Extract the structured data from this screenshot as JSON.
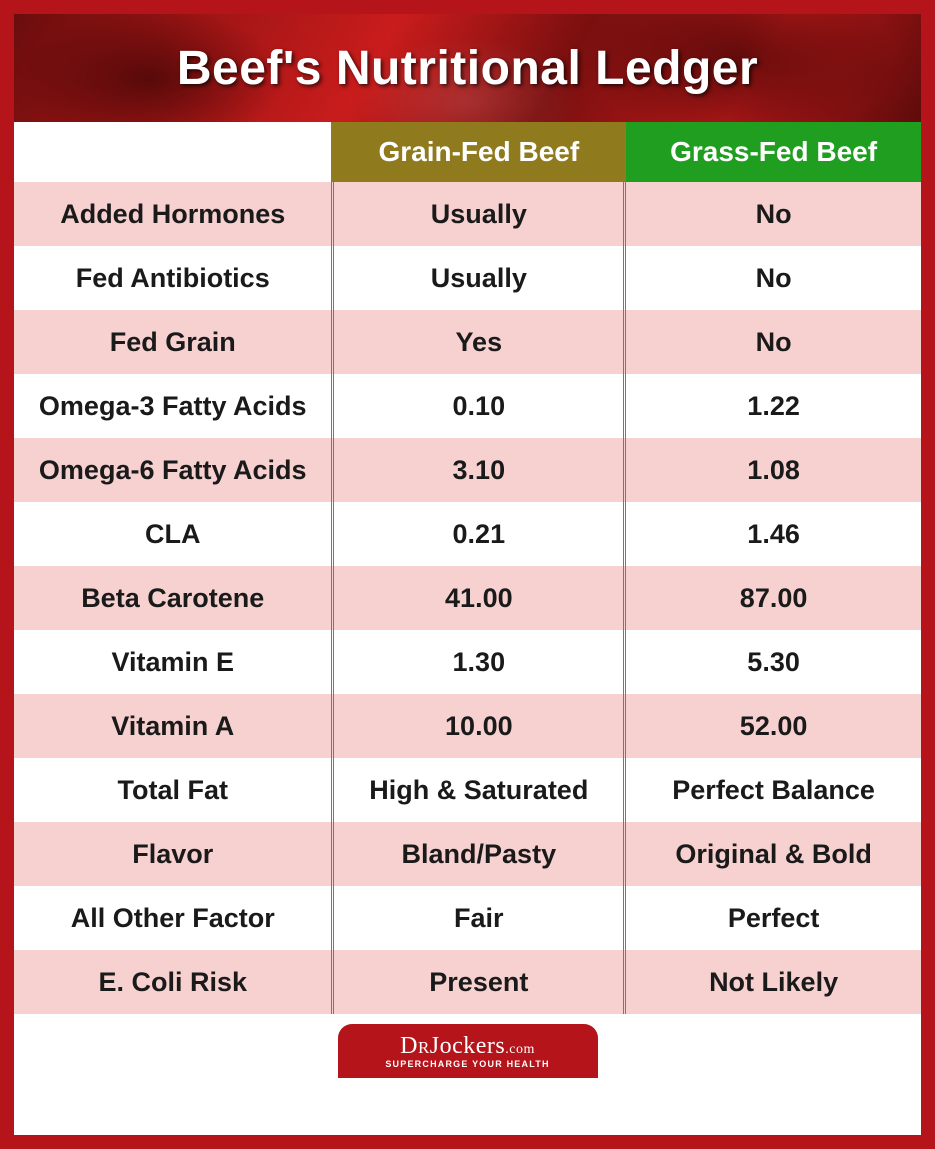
{
  "title": "Beef's Nutritional Ledger",
  "title_fontsize": 48,
  "title_color": "#ffffff",
  "banner_gradient_colors": [
    "#6a0d0d",
    "#a01515",
    "#c91c1c",
    "#7a0f0f",
    "#b51818",
    "#5e0b0b"
  ],
  "frame_color": "#b4141a",
  "table": {
    "type": "table",
    "header_row_height": 60,
    "data_row_height": 64,
    "label_fontsize": 27,
    "label_fontweight": 600,
    "value_fontsize": 27,
    "value_fontweight": 600,
    "row_stripe_colors": [
      "#f7d0d0",
      "#ffffff"
    ],
    "divider_color": "#777777",
    "columns": [
      {
        "key": "label",
        "header": "",
        "width_pct": 35,
        "bg": "#ffffff",
        "align": "center"
      },
      {
        "key": "grain",
        "header": "Grain-Fed Beef",
        "width_pct": 32.5,
        "bg": "#8f7a1e",
        "header_color": "#ffffff",
        "align": "center"
      },
      {
        "key": "grass",
        "header": "Grass-Fed Beef",
        "width_pct": 32.5,
        "bg": "#1f9e1f",
        "header_color": "#ffffff",
        "align": "center"
      }
    ],
    "rows": [
      {
        "label": "Added Hormones",
        "grain": "Usually",
        "grass": "No"
      },
      {
        "label": "Fed Antibiotics",
        "grain": "Usually",
        "grass": "No"
      },
      {
        "label": "Fed Grain",
        "grain": "Yes",
        "grass": "No"
      },
      {
        "label": "Omega-3 Fatty Acids",
        "grain": "0.10",
        "grass": "1.22"
      },
      {
        "label": "Omega-6 Fatty Acids",
        "grain": "3.10",
        "grass": "1.08"
      },
      {
        "label": "CLA",
        "grain": "0.21",
        "grass": "1.46"
      },
      {
        "label": "Beta Carotene",
        "grain": "41.00",
        "grass": "87.00"
      },
      {
        "label": "Vitamin E",
        "grain": "1.30",
        "grass": "5.30"
      },
      {
        "label": "Vitamin A",
        "grain": "10.00",
        "grass": "52.00"
      },
      {
        "label": "Total Fat",
        "grain": "High & Saturated",
        "grass": "Perfect Balance"
      },
      {
        "label": "Flavor",
        "grain": "Bland/Pasty",
        "grass": "Original & Bold"
      },
      {
        "label": "All Other Factor",
        "grain": "Fair",
        "grass": "Perfect"
      },
      {
        "label": "E. Coli Risk",
        "grain": "Present",
        "grass": "Not Likely"
      }
    ]
  },
  "logo": {
    "main_prefix": "Dr",
    "main_name": "Jockers",
    "main_suffix": ".com",
    "tagline": "SUPERCHARGE YOUR HEALTH",
    "bg": "#b4141a",
    "text_color": "#ffffff"
  }
}
